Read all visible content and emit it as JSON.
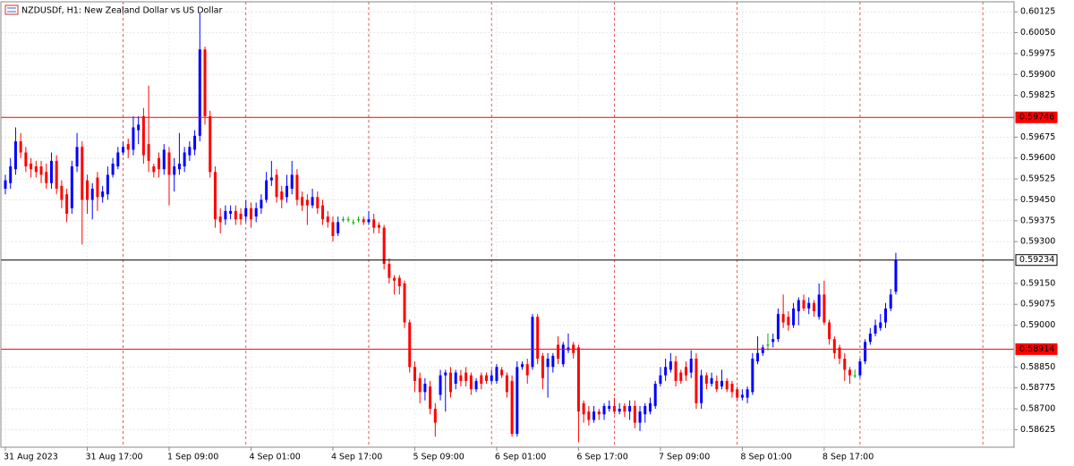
{
  "chart_data": {
    "type": "candlestick",
    "title": "NZDUSDf, H1:  New Zealand Dollar vs US Dollar",
    "up_color": "#0000ff",
    "down_color": "#ff0000",
    "doji_color": "#00b000",
    "ylim": [
      0.58562,
      0.60161
    ],
    "yticks": [
      0.60125,
      {
        "value": 0.6005,
        "label": "0.60050"
      },
      0.59975,
      {
        "value": 0.599,
        "label": "0.59900"
      },
      0.59825,
      0.59675,
      {
        "value": 0.596,
        "label": "0.59600"
      },
      0.59525,
      {
        "value": 0.5945,
        "label": "0.59450"
      },
      0.59375,
      {
        "value": 0.593,
        "label": "0.59300"
      },
      {
        "value": 0.5915,
        "label": "0.59150"
      },
      0.59075,
      {
        "value": 0.59,
        "label": "0.59000"
      },
      {
        "value": 0.5885,
        "label": "0.58850"
      },
      0.58775,
      {
        "value": 0.587,
        "label": "0.58700"
      },
      0.58625
    ],
    "xticks": [
      {
        "value": 0,
        "label": "31 Aug 2023"
      },
      {
        "value": 16,
        "label": "31 Aug 17:00"
      },
      {
        "value": 32,
        "label": "1 Sep 09:00"
      },
      {
        "value": 48,
        "label": "4 Sep 01:00"
      },
      {
        "value": 64,
        "label": "4 Sep 17:00"
      },
      {
        "value": 80,
        "label": "5 Sep 09:00"
      },
      {
        "value": 96,
        "label": "6 Sep 01:00"
      },
      {
        "value": 112,
        "label": "6 Sep 17:00"
      },
      {
        "value": 128,
        "label": "7 Sep 09:00"
      },
      {
        "value": 144,
        "label": "8 Sep 01:00"
      },
      {
        "value": 160,
        "label": "8 Sep 17:00"
      }
    ],
    "price_lines": [
      {
        "value": 0.59746,
        "color": "#ff0000"
      },
      {
        "value": 0.59234,
        "color": "#000000"
      },
      {
        "value": 0.58914,
        "color": "#ff0000"
      }
    ],
    "ohlc": [
      [
        0.5949,
        0.5954,
        0.5947,
        0.5952
      ],
      [
        0.5951,
        0.596,
        0.5949,
        0.5957
      ],
      [
        0.5956,
        0.5971,
        0.5954,
        0.5966
      ],
      [
        0.5966,
        0.5969,
        0.596,
        0.5962
      ],
      [
        0.5962,
        0.5964,
        0.5955,
        0.5957
      ],
      [
        0.5958,
        0.596,
        0.5953,
        0.5956
      ],
      [
        0.5957,
        0.5959,
        0.5953,
        0.5955
      ],
      [
        0.5957,
        0.5959,
        0.5951,
        0.5954
      ],
      [
        0.5955,
        0.5958,
        0.5949,
        0.5951
      ],
      [
        0.5951,
        0.5962,
        0.5949,
        0.5959
      ],
      [
        0.5959,
        0.5961,
        0.5947,
        0.5949
      ],
      [
        0.595,
        0.5952,
        0.5942,
        0.5945
      ],
      [
        0.5947,
        0.5949,
        0.5937,
        0.594
      ],
      [
        0.5942,
        0.5959,
        0.594,
        0.5957
      ],
      [
        0.5957,
        0.5969,
        0.5955,
        0.5964
      ],
      [
        0.5964,
        0.5966,
        0.5929,
        0.5945
      ],
      [
        0.5952,
        0.5954,
        0.594,
        0.5945
      ],
      [
        0.5945,
        0.5951,
        0.5938,
        0.5949
      ],
      [
        0.5953,
        0.5955,
        0.5941,
        0.5946
      ],
      [
        0.5946,
        0.595,
        0.5944,
        0.5948
      ],
      [
        0.5947,
        0.5957,
        0.5945,
        0.5954
      ],
      [
        0.5954,
        0.596,
        0.5953,
        0.5958
      ],
      [
        0.5957,
        0.5964,
        0.5956,
        0.5962
      ],
      [
        0.5962,
        0.5966,
        0.5961,
        0.5964
      ],
      [
        0.5965,
        0.5967,
        0.596,
        0.5963
      ],
      [
        0.5963,
        0.5975,
        0.5961,
        0.5971
      ],
      [
        0.597,
        0.5975,
        0.5965,
        0.5972
      ],
      [
        0.5975,
        0.5978,
        0.5958,
        0.5961
      ],
      [
        0.5965,
        0.5986,
        0.5955,
        0.5959
      ],
      [
        0.5957,
        0.5958,
        0.5953,
        0.5955
      ],
      [
        0.596,
        0.5962,
        0.5953,
        0.5956
      ],
      [
        0.5956,
        0.5965,
        0.5954,
        0.5963
      ],
      [
        0.5962,
        0.5964,
        0.5943,
        0.5954
      ],
      [
        0.5954,
        0.596,
        0.5948,
        0.5957
      ],
      [
        0.5956,
        0.5969,
        0.5954,
        0.5958
      ],
      [
        0.5957,
        0.5964,
        0.5955,
        0.5962
      ],
      [
        0.5961,
        0.5966,
        0.5959,
        0.5964
      ],
      [
        0.5963,
        0.597,
        0.5961,
        0.5968
      ],
      [
        0.5968,
        0.6012,
        0.5966,
        0.5999
      ],
      [
        0.5999,
        0.6,
        0.5972,
        0.5975
      ],
      [
        0.5975,
        0.5977,
        0.5953,
        0.5955
      ],
      [
        0.5955,
        0.5957,
        0.5935,
        0.5938
      ],
      [
        0.5939,
        0.5942,
        0.5933,
        0.5937
      ],
      [
        0.5938,
        0.5943,
        0.5936,
        0.5941
      ],
      [
        0.594,
        0.5943,
        0.5938,
        0.5941
      ],
      [
        0.5941,
        0.5943,
        0.5936,
        0.5938
      ],
      [
        0.594,
        0.5942,
        0.5936,
        0.5938
      ],
      [
        0.5939,
        0.5945,
        0.5937,
        0.5942
      ],
      [
        0.5942,
        0.5944,
        0.5935,
        0.5938
      ],
      [
        0.5939,
        0.5944,
        0.5937,
        0.5942
      ],
      [
        0.5942,
        0.5947,
        0.594,
        0.5945
      ],
      [
        0.5945,
        0.5955,
        0.5944,
        0.5952
      ],
      [
        0.5952,
        0.5959,
        0.595,
        0.5953
      ],
      [
        0.5954,
        0.5956,
        0.5944,
        0.5946
      ],
      [
        0.5948,
        0.595,
        0.5942,
        0.5945
      ],
      [
        0.5946,
        0.5954,
        0.5944,
        0.595
      ],
      [
        0.5949,
        0.5959,
        0.5947,
        0.5954
      ],
      [
        0.5954,
        0.5956,
        0.5943,
        0.5945
      ],
      [
        0.5946,
        0.5948,
        0.5941,
        0.5943
      ],
      [
        0.5945,
        0.5947,
        0.5936,
        0.5943
      ],
      [
        0.5943,
        0.5949,
        0.5942,
        0.5946
      ],
      [
        0.5946,
        0.5948,
        0.594,
        0.5942
      ],
      [
        0.5943,
        0.5945,
        0.5936,
        0.5938
      ],
      [
        0.5939,
        0.5941,
        0.5935,
        0.5937
      ],
      [
        0.5937,
        0.5939,
        0.593,
        0.5932
      ],
      [
        0.5933,
        0.5939,
        0.5932,
        0.5937
      ],
      [
        0.5938,
        0.5939,
        0.5937,
        0.5938
      ],
      [
        0.5938,
        0.5939,
        0.5937,
        0.5938
      ],
      [
        0.5937,
        0.5938,
        0.5936,
        0.5937
      ],
      [
        0.5938,
        0.5939,
        0.5937,
        0.5938
      ],
      [
        0.5938,
        0.5939,
        0.5936,
        0.5937
      ],
      [
        0.5937,
        0.5941,
        0.5936,
        0.5938
      ],
      [
        0.5938,
        0.594,
        0.5933,
        0.5935
      ],
      [
        0.5936,
        0.5937,
        0.5933,
        0.5935
      ],
      [
        0.5935,
        0.5936,
        0.592,
        0.5922
      ],
      [
        0.5922,
        0.5924,
        0.5915,
        0.5917
      ],
      [
        0.5917,
        0.5918,
        0.5911,
        0.5916
      ],
      [
        0.5917,
        0.5918,
        0.5911,
        0.5914
      ],
      [
        0.5915,
        0.5916,
        0.5899,
        0.5901
      ],
      [
        0.5901,
        0.5902,
        0.5883,
        0.5885
      ],
      [
        0.5885,
        0.5887,
        0.5876,
        0.588
      ],
      [
        0.5881,
        0.5883,
        0.5872,
        0.5876
      ],
      [
        0.5876,
        0.5881,
        0.5873,
        0.5879
      ],
      [
        0.5878,
        0.588,
        0.5868,
        0.587
      ],
      [
        0.587,
        0.5872,
        0.586,
        0.5865
      ],
      [
        0.5875,
        0.5884,
        0.5873,
        0.5882
      ],
      [
        0.5882,
        0.5884,
        0.5869,
        0.5883
      ],
      [
        0.5883,
        0.5885,
        0.5874,
        0.5876
      ],
      [
        0.5879,
        0.5884,
        0.5877,
        0.5883
      ],
      [
        0.5882,
        0.5884,
        0.5878,
        0.588
      ],
      [
        0.5883,
        0.5885,
        0.5878,
        0.588
      ],
      [
        0.5882,
        0.5883,
        0.5875,
        0.5877
      ],
      [
        0.5877,
        0.5881,
        0.5876,
        0.588
      ],
      [
        0.5882,
        0.5883,
        0.5877,
        0.5879
      ],
      [
        0.5882,
        0.5883,
        0.5879,
        0.588
      ],
      [
        0.588,
        0.5884,
        0.5879,
        0.5882
      ],
      [
        0.588,
        0.5886,
        0.5879,
        0.5885
      ],
      [
        0.5884,
        0.5885,
        0.5881,
        0.5882
      ],
      [
        0.5882,
        0.5883,
        0.5874,
        0.5876
      ],
      [
        0.588,
        0.5882,
        0.586,
        0.5861
      ],
      [
        0.5861,
        0.5887,
        0.586,
        0.5885
      ],
      [
        0.5885,
        0.5887,
        0.5884,
        0.5886
      ],
      [
        0.5886,
        0.5888,
        0.5879,
        0.5882
      ],
      [
        0.5885,
        0.5904,
        0.5884,
        0.5903
      ],
      [
        0.5903,
        0.5904,
        0.5886,
        0.5888
      ],
      [
        0.5889,
        0.589,
        0.5877,
        0.5881
      ],
      [
        0.5885,
        0.589,
        0.5874,
        0.5888
      ],
      [
        0.5885,
        0.589,
        0.5883,
        0.5889
      ],
      [
        0.5893,
        0.5896,
        0.5886,
        0.5888
      ],
      [
        0.5886,
        0.5894,
        0.5885,
        0.5893
      ],
      [
        0.5891,
        0.5897,
        0.589,
        0.5892
      ],
      [
        0.5893,
        0.5894,
        0.5888,
        0.589
      ],
      [
        0.5892,
        0.5893,
        0.5858,
        0.5869
      ],
      [
        0.5872,
        0.5873,
        0.5865,
        0.5868
      ],
      [
        0.5869,
        0.5871,
        0.5864,
        0.5866
      ],
      [
        0.5866,
        0.5871,
        0.5865,
        0.5869
      ],
      [
        0.5869,
        0.587,
        0.5866,
        0.5868
      ],
      [
        0.5868,
        0.5872,
        0.5866,
        0.5871
      ],
      [
        0.587,
        0.5873,
        0.5869,
        0.5871
      ],
      [
        0.5871,
        0.5874,
        0.5868,
        0.5869
      ],
      [
        0.5869,
        0.5872,
        0.5868,
        0.587
      ],
      [
        0.5871,
        0.5872,
        0.5867,
        0.5869
      ],
      [
        0.5869,
        0.5873,
        0.5866,
        0.5871
      ],
      [
        0.5871,
        0.5873,
        0.5863,
        0.5865
      ],
      [
        0.5865,
        0.5871,
        0.5862,
        0.5869
      ],
      [
        0.5868,
        0.5872,
        0.5865,
        0.5871
      ],
      [
        0.5869,
        0.5874,
        0.5868,
        0.5872
      ],
      [
        0.5871,
        0.588,
        0.587,
        0.5879
      ],
      [
        0.5879,
        0.5885,
        0.5878,
        0.5882
      ],
      [
        0.5882,
        0.5888,
        0.588,
        0.5885
      ],
      [
        0.5884,
        0.589,
        0.5883,
        0.5887
      ],
      [
        0.5887,
        0.5889,
        0.5878,
        0.588
      ],
      [
        0.5883,
        0.5884,
        0.5879,
        0.588
      ],
      [
        0.5885,
        0.5887,
        0.588,
        0.5882
      ],
      [
        0.5883,
        0.5891,
        0.5881,
        0.5888
      ],
      [
        0.5888,
        0.589,
        0.587,
        0.5872
      ],
      [
        0.5872,
        0.5884,
        0.587,
        0.5882
      ],
      [
        0.5882,
        0.5883,
        0.5877,
        0.5879
      ],
      [
        0.5879,
        0.5883,
        0.5878,
        0.5881
      ],
      [
        0.588,
        0.5882,
        0.5876,
        0.5877
      ],
      [
        0.5878,
        0.5884,
        0.5877,
        0.588
      ],
      [
        0.588,
        0.5881,
        0.5876,
        0.5877
      ],
      [
        0.5879,
        0.588,
        0.5874,
        0.5876
      ],
      [
        0.5877,
        0.5878,
        0.5873,
        0.5874
      ],
      [
        0.5874,
        0.5877,
        0.5873,
        0.5875
      ],
      [
        0.5874,
        0.5878,
        0.5872,
        0.5877
      ],
      [
        0.5876,
        0.589,
        0.5875,
        0.5888
      ],
      [
        0.5887,
        0.5896,
        0.5886,
        0.589
      ],
      [
        0.589,
        0.5893,
        0.5889,
        0.5892
      ],
      [
        0.5893,
        0.5897,
        0.5891,
        0.5893
      ],
      [
        0.5894,
        0.5897,
        0.5892,
        0.5895
      ],
      [
        0.5895,
        0.5906,
        0.5894,
        0.5904
      ],
      [
        0.5904,
        0.5911,
        0.5899,
        0.5901
      ],
      [
        0.5903,
        0.5905,
        0.5898,
        0.59
      ],
      [
        0.59,
        0.5908,
        0.5899,
        0.5906
      ],
      [
        0.5905,
        0.591,
        0.59,
        0.5909
      ],
      [
        0.5909,
        0.5911,
        0.5905,
        0.5906
      ],
      [
        0.5906,
        0.591,
        0.5904,
        0.5908
      ],
      [
        0.5908,
        0.5909,
        0.5903,
        0.5905
      ],
      [
        0.5903,
        0.5915,
        0.5902,
        0.5911
      ],
      [
        0.5911,
        0.5916,
        0.59,
        0.5901
      ],
      [
        0.5901,
        0.5902,
        0.5893,
        0.5895
      ],
      [
        0.5895,
        0.5896,
        0.5888,
        0.589
      ],
      [
        0.5892,
        0.5893,
        0.5886,
        0.5888
      ],
      [
        0.5888,
        0.589,
        0.588,
        0.5884
      ],
      [
        0.5884,
        0.5885,
        0.5879,
        0.5882
      ],
      [
        0.5882,
        0.5884,
        0.5881,
        0.5882
      ],
      [
        0.5882,
        0.5888,
        0.5881,
        0.5887
      ],
      [
        0.5887,
        0.5895,
        0.5886,
        0.5894
      ],
      [
        0.5894,
        0.5899,
        0.5893,
        0.5897
      ],
      [
        0.5897,
        0.5902,
        0.5896,
        0.59
      ],
      [
        0.5899,
        0.5904,
        0.5898,
        0.5901
      ],
      [
        0.5901,
        0.5908,
        0.5899,
        0.5906
      ],
      [
        0.5906,
        0.5913,
        0.5905,
        0.5911
      ],
      [
        0.5912,
        0.5926,
        0.5911,
        0.59234
      ]
    ]
  }
}
